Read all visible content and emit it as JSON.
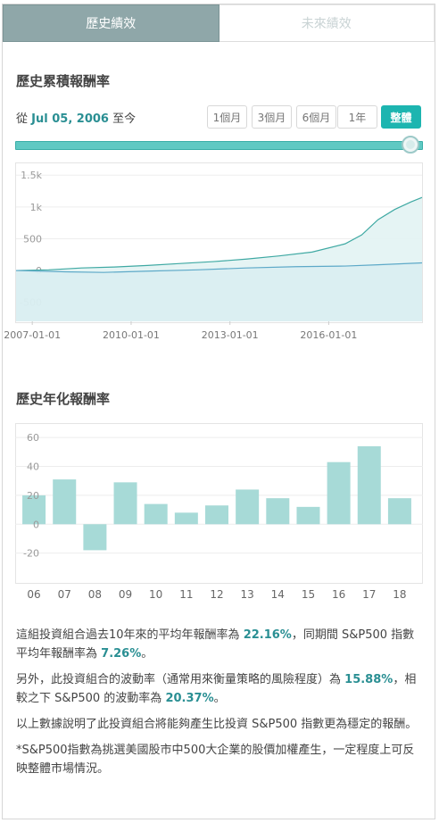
{
  "tabs": [
    {
      "label": "歷史績效",
      "active": true
    },
    {
      "label": "未來績效",
      "active": false
    }
  ],
  "cumulative": {
    "title": "歷史累積報酬率",
    "since_prefix": "從",
    "since_date": "Jul 05, 2006",
    "since_suffix": "至今",
    "range_buttons": [
      "1個月",
      "3個月",
      "6個月",
      "1年",
      "整體"
    ],
    "active_range": "整體"
  },
  "annual": {
    "title": "歷史年化報酬率"
  },
  "description": {
    "p1_a": "這組投資組合過去10年來的平均年報酬率為",
    "p1_v1": "22.16%",
    "p1_b": "，同期間 S&P500 指數平均年報酬率為",
    "p1_v2": "7.26%",
    "p1_c": "。",
    "p2_a": "另外，此投資組合的波動率（通常用來衡量策略的風險程度）為",
    "p2_v1": "15.88%",
    "p2_b": "，相較之下 S&P500 的波動率為",
    "p2_v2": "20.37%",
    "p2_c": "。",
    "p3": "以上數據說明了此投資組合將能夠產生比投資 S&P500 指數更為穩定的報酬。",
    "p4": "*S&P500指數為挑選美國股市中500大企業的股價加權產生，一定程度上可反映整體市場情況。"
  },
  "colors": {
    "accent": "#1db5b0",
    "tab_active": "#8fa7a9",
    "bar_fill": "#a7dad7",
    "highlight": "#2a8f93"
  },
  "chart_data": [
    {
      "type": "area",
      "x_ticks": [
        "2007-01-01",
        "2010-01-01",
        "2013-01-01",
        "2016-01-01"
      ],
      "y_ticks": [
        "1.5k",
        "1k",
        "500",
        "0",
        "-500"
      ],
      "ylim": [
        -800,
        1700
      ],
      "x_range": [
        "2006-07-05",
        "2018-11-01"
      ],
      "grid": true,
      "series": [
        {
          "points": [
            [
              "2006-07-05",
              0
            ],
            [
              "2007-07-01",
              10
            ],
            [
              "2008-07-01",
              40
            ],
            [
              "2009-07-01",
              55
            ],
            [
              "2010-07-01",
              80
            ],
            [
              "2011-07-01",
              110
            ],
            [
              "2012-07-01",
              140
            ],
            [
              "2013-07-01",
              180
            ],
            [
              "2014-07-01",
              230
            ],
            [
              "2015-07-01",
              290
            ],
            [
              "2016-07-01",
              420
            ],
            [
              "2017-01-01",
              560
            ],
            [
              "2017-07-01",
              800
            ],
            [
              "2018-01-01",
              960
            ],
            [
              "2018-07-01",
              1080
            ],
            [
              "2018-11-01",
              1150
            ]
          ]
        },
        {
          "points": [
            [
              "2006-07-05",
              0
            ],
            [
              "2008-01-01",
              -20
            ],
            [
              "2009-03-01",
              -30
            ],
            [
              "2010-07-01",
              -10
            ],
            [
              "2012-01-01",
              10
            ],
            [
              "2013-07-01",
              40
            ],
            [
              "2015-01-01",
              60
            ],
            [
              "2016-07-01",
              70
            ],
            [
              "2017-07-01",
              90
            ],
            [
              "2018-11-01",
              120
            ]
          ]
        }
      ]
    },
    {
      "type": "bar",
      "categories": [
        "06",
        "07",
        "08",
        "09",
        "10",
        "11",
        "12",
        "13",
        "14",
        "15",
        "16",
        "17",
        "18"
      ],
      "values": [
        20,
        31,
        -18,
        29,
        14,
        8,
        13,
        24,
        18,
        12,
        43,
        54,
        18
      ],
      "y_ticks": [
        "60",
        "40",
        "20",
        "0",
        "-20"
      ],
      "ylim": [
        -40,
        70
      ],
      "grid": true
    }
  ]
}
